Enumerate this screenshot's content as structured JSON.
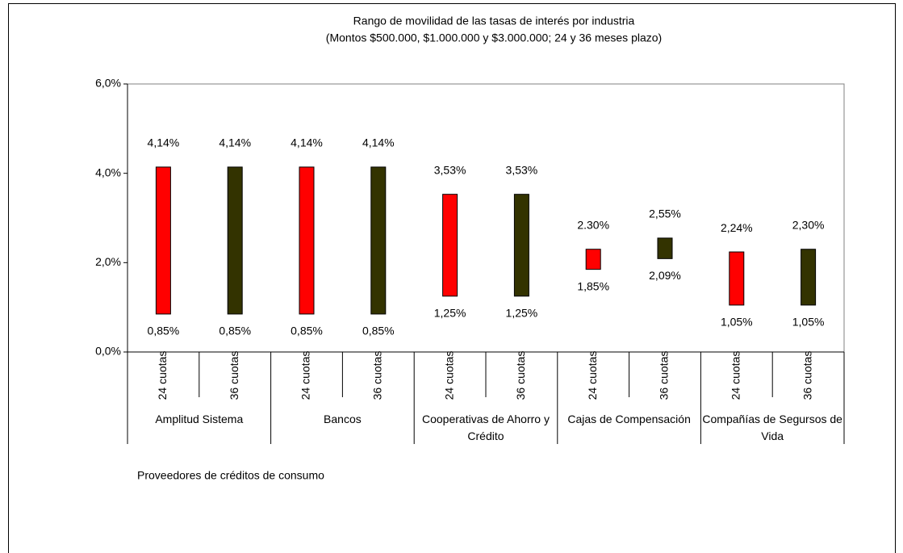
{
  "chart_data": {
    "type": "range",
    "title": "Rango de movilidad de las tasas de interés por industria",
    "subtitle": "(Montos $500.000, $1.000.000 y $3.000.000; 24 y 36 meses plazo)",
    "x_label": "Proveedores de créditos de consumo",
    "ylim": [
      0,
      6
    ],
    "yticks": [
      {
        "value": 0,
        "label": "0,0%"
      },
      {
        "value": 2,
        "label": "2,0%"
      },
      {
        "value": 4,
        "label": "4,0%"
      },
      {
        "value": 6,
        "label": "6,0%"
      }
    ],
    "grid": false,
    "colors": [
      "#ff0000",
      "#333300"
    ],
    "groups": [
      {
        "label": "Amplitud Sistema",
        "categories": [
          "24 cuotas",
          "36 cuotas"
        ],
        "low": [
          0.85,
          0.85
        ],
        "high": [
          4.14,
          4.14
        ],
        "low_labels": [
          "0,85%",
          "0,85%"
        ],
        "high_labels": [
          "4,14%",
          "4,14%"
        ]
      },
      {
        "label": "Bancos",
        "categories": [
          "24 cuotas",
          "36 cuotas"
        ],
        "low": [
          0.85,
          0.85
        ],
        "high": [
          4.14,
          4.14
        ],
        "low_labels": [
          "0,85%",
          "0,85%"
        ],
        "high_labels": [
          "4,14%",
          "4,14%"
        ]
      },
      {
        "label": "Cooperativas de Ahorro y Crédito",
        "categories": [
          "24 cuotas",
          "36 cuotas"
        ],
        "low": [
          1.25,
          1.25
        ],
        "high": [
          3.53,
          3.53
        ],
        "low_labels": [
          "1,25%",
          "1,25%"
        ],
        "high_labels": [
          "3,53%",
          "3,53%"
        ]
      },
      {
        "label": "Cajas de Compensación",
        "categories": [
          "24 cuotas",
          "36 cuotas"
        ],
        "low": [
          1.85,
          2.09
        ],
        "high": [
          2.3,
          2.55
        ],
        "low_labels": [
          "1,85%",
          "2,09%"
        ],
        "high_labels": [
          "2.30%",
          "2,55%"
        ]
      },
      {
        "label": "Compañías de Segursos de Vida",
        "categories": [
          "24 cuotas",
          "36 cuotas"
        ],
        "low": [
          1.05,
          1.05
        ],
        "high": [
          2.24,
          2.3
        ],
        "low_labels": [
          "1,05%",
          "1,05%"
        ],
        "high_labels": [
          "2,24%",
          "2,30%"
        ]
      }
    ]
  }
}
